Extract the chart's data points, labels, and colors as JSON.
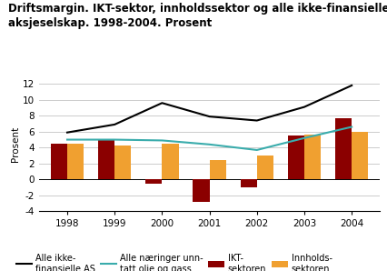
{
  "title": "Driftsmargin. IKT-sektor, innholdssektor og alle ikke-finansielle\naksjeselskap. 1998-2004. Prosent",
  "ylabel": "Prosent",
  "years": [
    1998,
    1999,
    2000,
    2001,
    2002,
    2003,
    2004
  ],
  "alle_ikkefinansielle": [
    5.9,
    6.9,
    9.6,
    7.9,
    7.4,
    9.1,
    11.8
  ],
  "alle_naringer": [
    5.0,
    5.0,
    4.9,
    4.4,
    3.7,
    5.2,
    6.6
  ],
  "ikt_sektor": [
    4.5,
    5.0,
    -0.5,
    -2.8,
    -1.0,
    5.5,
    7.7
  ],
  "innholds_sektor": [
    4.5,
    4.3,
    4.5,
    2.4,
    3.0,
    5.6,
    6.0
  ],
  "alle_ikkefinansielle_color": "#000000",
  "alle_naringer_color": "#3aacac",
  "ikt_color": "#8b0000",
  "innholds_color": "#f0a030",
  "ylim": [
    -4,
    13
  ],
  "yticks": [
    -4,
    -2,
    0,
    2,
    4,
    6,
    8,
    10,
    12
  ],
  "bar_width": 0.35,
  "legend_labels": [
    "Alle ikke-\nfinansielle AS",
    "Alle næringer unn-\ntatt olje og gass",
    "IKT-\nsektoren",
    "Innholds-\nsektoren"
  ],
  "background_color": "#ffffff",
  "grid_color": "#cccccc"
}
